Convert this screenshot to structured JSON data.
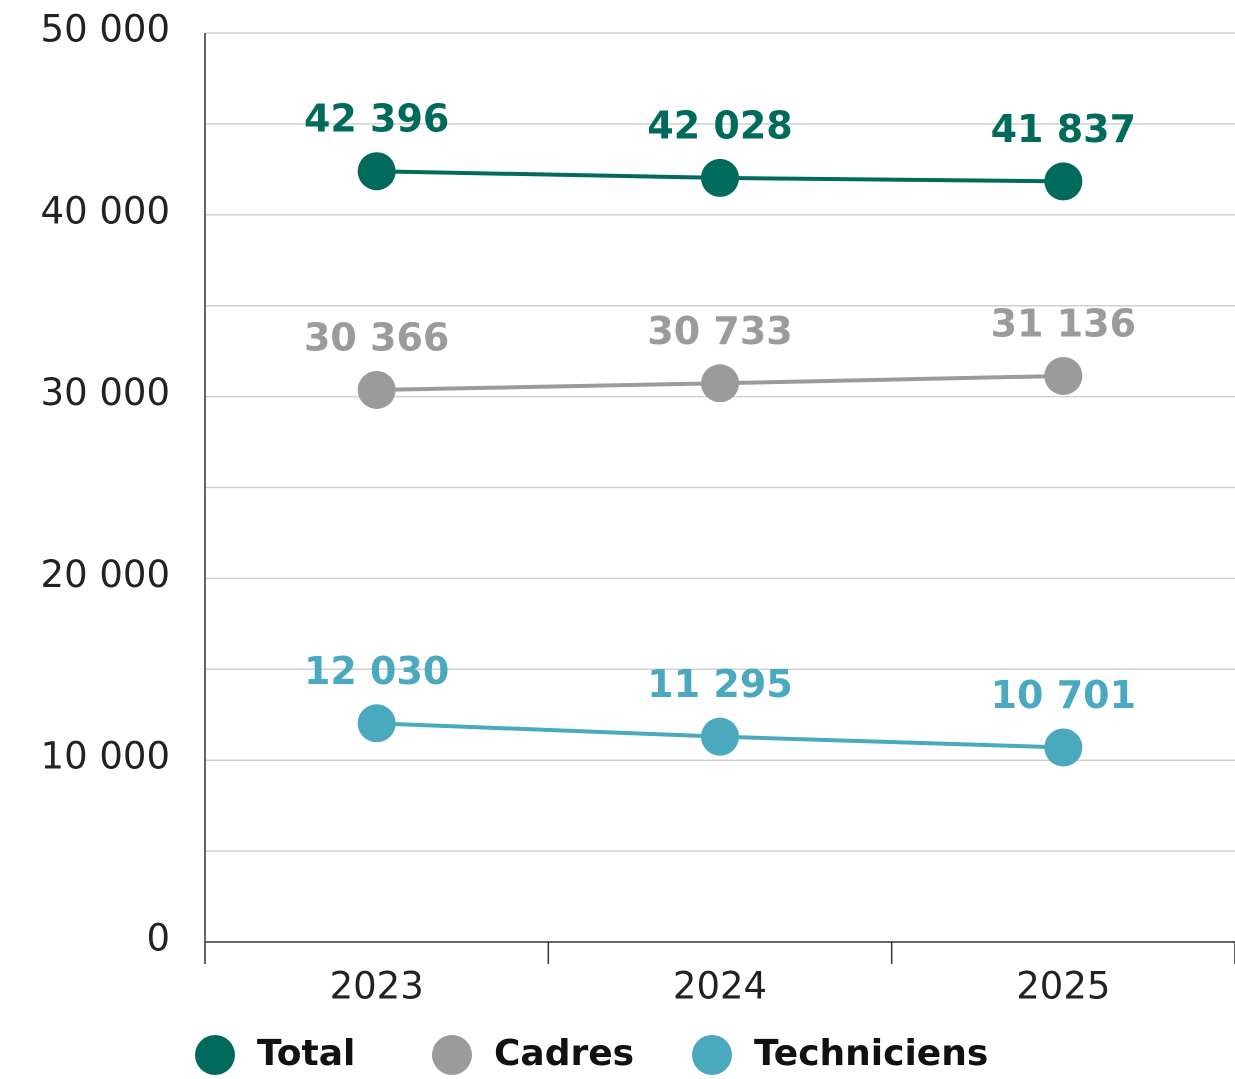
{
  "chart_data": {
    "type": "line",
    "categories": [
      "2023",
      "2024",
      "2025"
    ],
    "series": [
      {
        "name": "Total",
        "color": "#006b5c",
        "values": [
          42396,
          42028,
          41837
        ],
        "value_labels": [
          "42 396",
          "42 028",
          "41 837"
        ]
      },
      {
        "name": "Cadres",
        "color": "#9b9b9b",
        "values": [
          30366,
          30733,
          31136
        ],
        "value_labels": [
          "30 366",
          "30 733",
          "31 136"
        ]
      },
      {
        "name": "Techniciens",
        "color": "#4aa8bf",
        "values": [
          12030,
          11295,
          10701
        ],
        "value_labels": [
          "12 030",
          "11 295",
          "10 701"
        ]
      }
    ],
    "ylim": [
      0,
      50000
    ],
    "yticks": [
      {
        "value": 0,
        "label": "0"
      },
      {
        "value": 10000,
        "label": "10 000"
      },
      {
        "value": 20000,
        "label": "20 000"
      },
      {
        "value": 30000,
        "label": "30 000"
      },
      {
        "value": 40000,
        "label": "40 000"
      },
      {
        "value": 50000,
        "label": "50 000"
      }
    ],
    "minor_yticks": [
      5000,
      15000,
      25000,
      35000,
      45000
    ],
    "grid": true,
    "legend": "bottom"
  }
}
